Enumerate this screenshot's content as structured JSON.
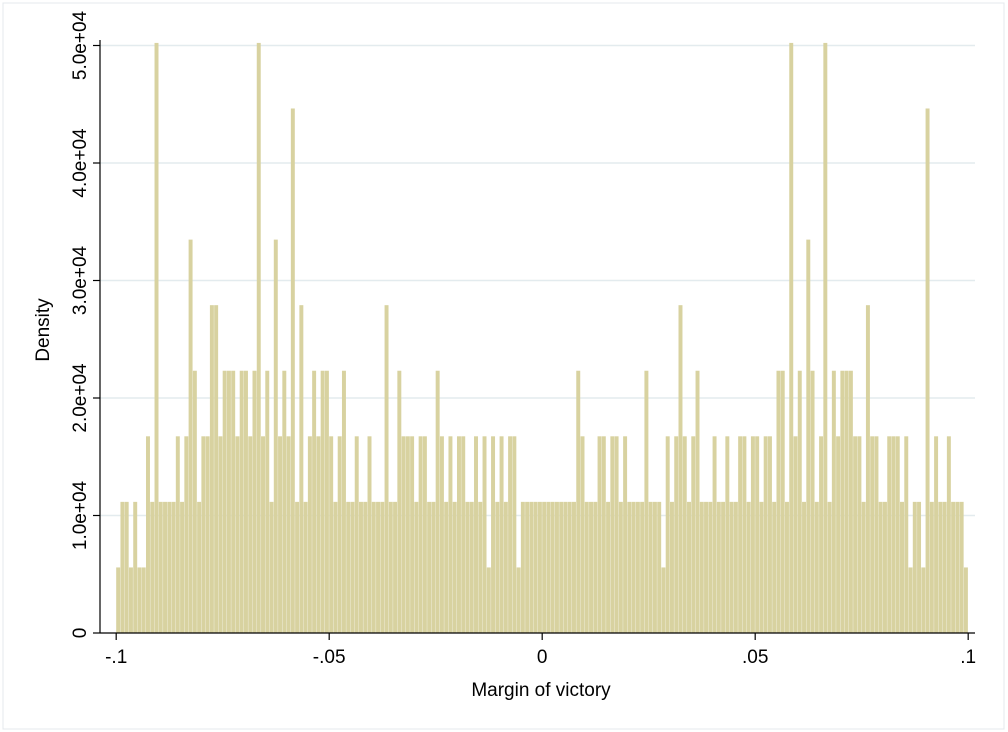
{
  "chart_data": {
    "type": "histogram",
    "xlabel": "Margin of victory",
    "ylabel": "Density",
    "color": "#d8d2a0",
    "grid": true,
    "bins": [
      -0.1,
      -0.099,
      -0.098,
      -0.097,
      -0.096,
      -0.095,
      -0.094,
      -0.093,
      -0.092,
      -0.091,
      -0.09,
      -0.089,
      -0.088,
      -0.087,
      -0.086,
      -0.085,
      -0.084,
      -0.083,
      -0.082,
      -0.081,
      -0.08,
      -0.079,
      -0.078,
      -0.077,
      -0.076,
      -0.075,
      -0.074,
      -0.073,
      -0.072,
      -0.071,
      -0.07,
      -0.069,
      -0.068,
      -0.067,
      -0.066,
      -0.065,
      -0.064,
      -0.063,
      -0.062,
      -0.061,
      -0.06,
      -0.059,
      -0.058,
      -0.057,
      -0.056,
      -0.055,
      -0.054,
      -0.053,
      -0.052,
      -0.051,
      -0.05,
      -0.049,
      -0.048,
      -0.047,
      -0.046,
      -0.045,
      -0.044,
      -0.043,
      -0.042,
      -0.041,
      -0.04,
      -0.039,
      -0.038,
      -0.037,
      -0.036,
      -0.035,
      -0.034,
      -0.033,
      -0.032,
      -0.031,
      -0.03,
      -0.029,
      -0.028,
      -0.027,
      -0.026,
      -0.025,
      -0.024,
      -0.023,
      -0.022,
      -0.021,
      -0.02,
      -0.019,
      -0.018,
      -0.017,
      -0.016,
      -0.015,
      -0.014,
      -0.013,
      -0.012,
      -0.011,
      -0.01,
      -0.009,
      -0.008,
      -0.007,
      -0.006,
      -0.005,
      -0.004,
      -0.003,
      -0.002,
      -0.001,
      0,
      0.001,
      0.002,
      0.003,
      0.004,
      0.005,
      0.006,
      0.007,
      0.008,
      0.009,
      0.01,
      0.011,
      0.012,
      0.013,
      0.014,
      0.015,
      0.016,
      0.017,
      0.018,
      0.019,
      0.02,
      0.021,
      0.022,
      0.023,
      0.024,
      0.025,
      0.026,
      0.027,
      0.028,
      0.029,
      0.03,
      0.031,
      0.032,
      0.033,
      0.034,
      0.035,
      0.036,
      0.037,
      0.038,
      0.039,
      0.04,
      0.041,
      0.042,
      0.043,
      0.044,
      0.045,
      0.046,
      0.047,
      0.048,
      0.049,
      0.05,
      0.051,
      0.052,
      0.053,
      0.054,
      0.055,
      0.056,
      0.057,
      0.058,
      0.059,
      0.06,
      0.061,
      0.062,
      0.063,
      0.064,
      0.065,
      0.066,
      0.067,
      0.068,
      0.069,
      0.07,
      0.071,
      0.072,
      0.073,
      0.074,
      0.075,
      0.076,
      0.077,
      0.078,
      0.079,
      0.08,
      0.081,
      0.082,
      0.083,
      0.084,
      0.085,
      0.086,
      0.087,
      0.088,
      0.089,
      0.09,
      0.091,
      0.092,
      0.093,
      0.094,
      0.095,
      0.096,
      0.097,
      0.098,
      0.099,
      0.1
    ],
    "values": [
      5580,
      11160,
      11160,
      5580,
      11160,
      5580,
      5580,
      16740,
      11160,
      50220,
      11160,
      11160,
      11160,
      11160,
      16740,
      11160,
      16740,
      33480,
      22320,
      11160,
      16740,
      16740,
      27900,
      27900,
      16740,
      22320,
      22320,
      22320,
      16740,
      22320,
      22320,
      16740,
      22320,
      50220,
      16740,
      22320,
      11160,
      33480,
      16740,
      22320,
      16740,
      44640,
      11160,
      27900,
      11160,
      16740,
      22320,
      16740,
      22320,
      22320,
      16740,
      11160,
      16740,
      22320,
      11160,
      11160,
      16740,
      11160,
      11160,
      16740,
      11160,
      11160,
      11160,
      27900,
      11160,
      11160,
      22320,
      16740,
      16740,
      16740,
      11160,
      16740,
      16740,
      11160,
      11160,
      22320,
      16740,
      11160,
      16740,
      11160,
      16740,
      16740,
      11160,
      11160,
      16740,
      11160,
      16740,
      5580,
      16740,
      11160,
      16740,
      11160,
      16740,
      16740,
      5580,
      11160,
      11160,
      11160,
      11160,
      11160,
      11160,
      11160,
      11160,
      11160,
      11160,
      11160,
      11160,
      11160,
      22320,
      16740,
      11160,
      11160,
      11160,
      16740,
      16740,
      11160,
      16740,
      16740,
      11160,
      16740,
      11160,
      11160,
      11160,
      11160,
      22320,
      11160,
      11160,
      11160,
      5580,
      16740,
      11160,
      16740,
      27900,
      16740,
      11160,
      16740,
      22320,
      11160,
      11160,
      11160,
      16740,
      11160,
      11160,
      16740,
      11160,
      11160,
      16740,
      16740,
      11160,
      16740,
      16740,
      11160,
      16740,
      16740,
      11160,
      22320,
      22320,
      11160,
      50220,
      16740,
      22320,
      11160,
      33480,
      22320,
      11160,
      16740,
      50220,
      11160,
      22320,
      16740,
      22320,
      22320,
      22320,
      16740,
      16740,
      11160,
      27900,
      16740,
      16740,
      11160,
      11160,
      16740,
      16740,
      16740,
      11160,
      16740,
      5580,
      11160,
      11160,
      5580,
      44640,
      11160,
      16740,
      11160,
      11160,
      16740,
      11160,
      11160,
      11160,
      5580
    ],
    "xlim": [
      -0.1038,
      0.1016
    ],
    "ylim": [
      0,
      52000
    ],
    "xticks": [
      {
        "value": -0.1,
        "label": "-.1"
      },
      {
        "value": -0.05,
        "label": "-.05"
      },
      0,
      {
        "value": 0.05,
        "label": ".05"
      },
      {
        "value": 0.1,
        "label": ".1"
      }
    ],
    "yticks": [
      0,
      {
        "value": 10000,
        "label": "1.0e+04"
      },
      {
        "value": 20000,
        "label": "2.0e+04"
      },
      {
        "value": 30000,
        "label": "3.0e+04"
      },
      {
        "value": 40000,
        "label": "4.0e+04"
      },
      {
        "value": 50000,
        "label": "5.0e+04"
      }
    ]
  }
}
